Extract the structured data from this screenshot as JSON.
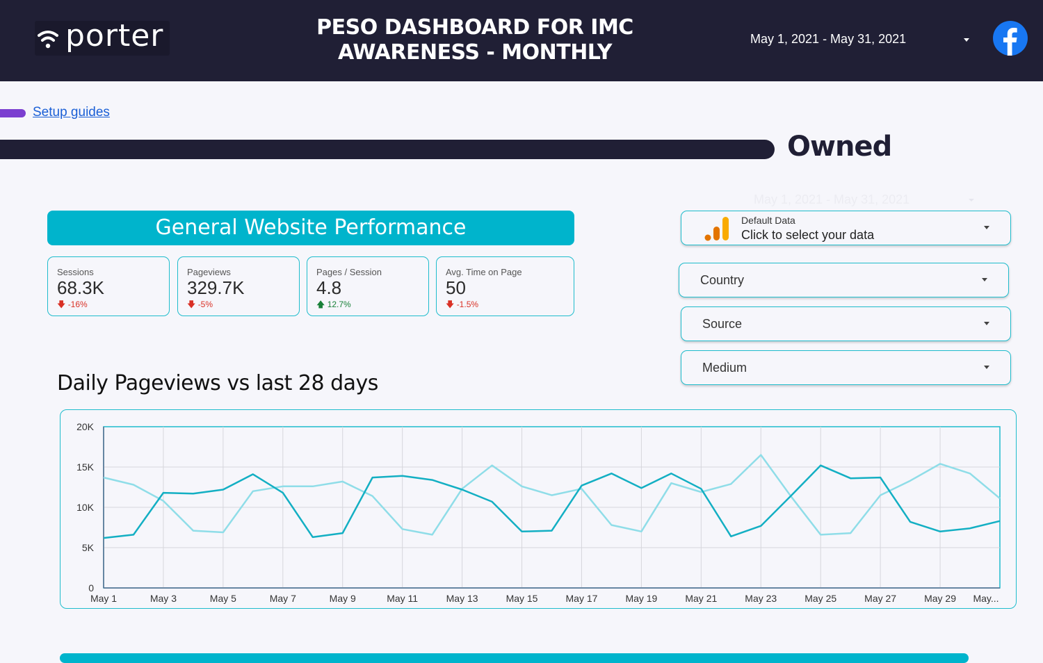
{
  "header": {
    "logo_text": "porter",
    "title_line1": "PESO DASHBOARD FOR IMC",
    "title_line2": "AWARENESS  - MONTHLY",
    "date_range": "May 1, 2021 - May 31, 2021"
  },
  "setup_link": "Setup guides",
  "section_title": "Owned",
  "faint_date_range": "May 1, 2021 - May 31, 2021",
  "performance_title": "General Website Performance",
  "kpis": [
    {
      "label": "Sessions",
      "value": "68.3K",
      "delta": "-16%",
      "direction": "down"
    },
    {
      "label": "Pageviews",
      "value": "329.7K",
      "delta": "-5%",
      "direction": "down"
    },
    {
      "label": "Pages / Session",
      "value": "4.8",
      "delta": "12.7%",
      "direction": "up"
    },
    {
      "label": "Avg. Time on Page",
      "value": "50",
      "delta": "-1.5%",
      "direction": "down"
    }
  ],
  "data_source": {
    "name": "Default Data",
    "prompt": "Click to select your data"
  },
  "filters": {
    "country": "Country",
    "source": "Source",
    "medium": "Medium"
  },
  "chart_title": "Daily Pageviews vs last 28 days",
  "colors": {
    "header_bg": "#201f35",
    "accent": "#00b4cc",
    "series_current": "#13afc3",
    "series_previous": "#8fdde8",
    "negative": "#d93025",
    "positive": "#188038",
    "link": "#1a5fd6",
    "setup_bar": "#7b3fd0"
  },
  "chart_data": {
    "type": "line",
    "x": [
      "May 1",
      "May 2",
      "May 3",
      "May 4",
      "May 5",
      "May 6",
      "May 7",
      "May 8",
      "May 9",
      "May 10",
      "May 11",
      "May 12",
      "May 13",
      "May 14",
      "May 15",
      "May 16",
      "May 17",
      "May 18",
      "May 19",
      "May 20",
      "May 21",
      "May 22",
      "May 23",
      "May 24",
      "May 25",
      "May 26",
      "May 27",
      "May 28",
      "May 29",
      "May 30",
      "May 31"
    ],
    "tick_labels": [
      "May 1",
      "May 3",
      "May 5",
      "May 7",
      "May 9",
      "May 11",
      "May 13",
      "May 15",
      "May 17",
      "May 19",
      "May 21",
      "May 23",
      "May 25",
      "May 27",
      "May 29",
      "May..."
    ],
    "yticks": [
      "0",
      "5K",
      "10K",
      "15K",
      "20K"
    ],
    "ylim": [
      0,
      20000
    ],
    "grid": true,
    "series": [
      {
        "values": [
          6200,
          6600,
          11800,
          11700,
          12200,
          14100,
          11800,
          6300,
          6800,
          13700,
          13900,
          13400,
          12200,
          10700,
          7000,
          7100,
          12700,
          14200,
          12400,
          14200,
          12300,
          6400,
          7700,
          11400,
          15200,
          13600,
          13700,
          8200,
          7000,
          7400,
          8300
        ]
      },
      {
        "values": [
          13700,
          12800,
          10800,
          7100,
          6900,
          12000,
          12600,
          12600,
          13200,
          11400,
          7300,
          6600,
          12300,
          15200,
          12600,
          11500,
          12300,
          7800,
          7000,
          13000,
          11900,
          12900,
          16500,
          11400,
          6600,
          6800,
          11500,
          13300,
          15400,
          14200,
          11100
        ]
      }
    ]
  }
}
